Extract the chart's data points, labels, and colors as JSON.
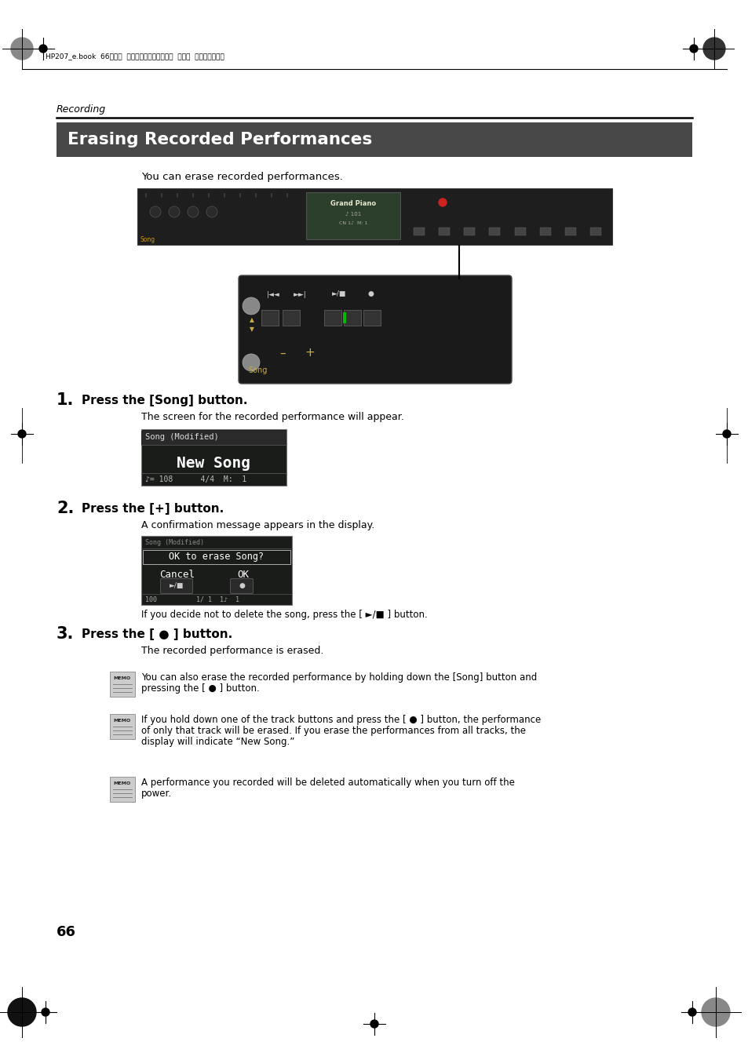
{
  "page_bg": "#ffffff",
  "header_text": "HP207_e.book  66ページ  ２００６年１２月２５日  月曜日  午前９晏５２分",
  "section_label": "Recording",
  "title": "Erasing Recorded Performances",
  "title_bg": "#484848",
  "title_color": "#ffffff",
  "intro_text": "You can erase recorded performances.",
  "step1_num": "1",
  "step1_head": "Press the [Song] button.",
  "step1_body": "The screen for the recorded performance will appear.",
  "step2_num": "2",
  "step2_head": "Press the [+] button.",
  "step2_body": "A confirmation message appears in the display.",
  "step2_note": "If you decide not to delete the song, press the [ ►/■ ] button.",
  "step3_num": "3",
  "step3_head": "Press the [ ● ] button.",
  "step3_body": "The recorded performance is erased.",
  "memo1_line1": "You can also erase the recorded performance by holding down the [Song] button and",
  "memo1_line2": "pressing the [ ● ] button.",
  "memo2_line1": "If you hold down one of the track buttons and press the [ ● ] button, the performance",
  "memo2_line2": "of only that track will be erased. If you erase the performances from all tracks, the",
  "memo2_line3": "display will indicate “New Song.”",
  "memo3_line1": "A performance you recorded will be deleted automatically when you turn off the",
  "memo3_line2": "power.",
  "page_num": "66",
  "screen1_header": "Song (Modified)",
  "screen1_main": "New Song",
  "screen1_footer": "♪= 108      4/4  M:  1",
  "screen2_top": "Song (Modified)",
  "screen2_header": "OK to erase Song?",
  "screen2_cancel": "Cancel",
  "screen2_ok": "OK",
  "screen2_footer": "100          1/ 1  1♪  1"
}
